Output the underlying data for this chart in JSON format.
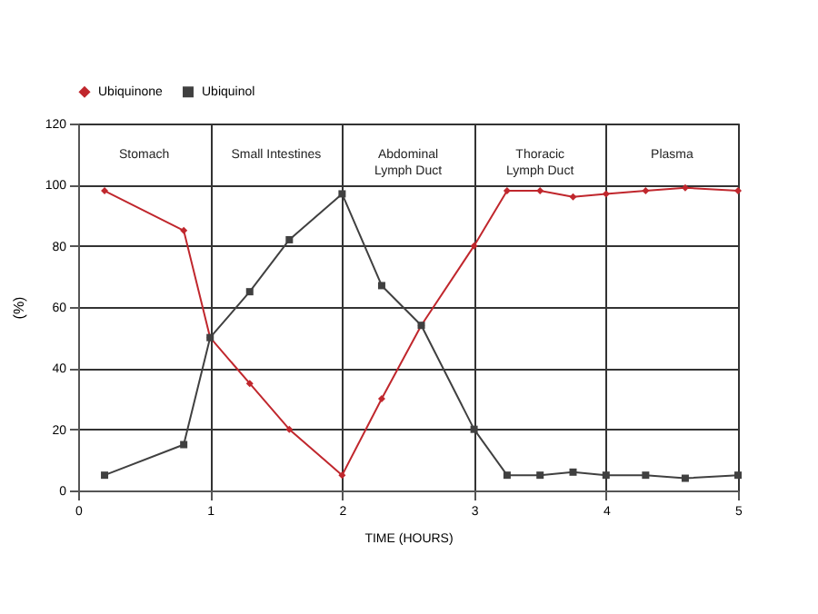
{
  "chart_data": {
    "type": "line",
    "xlabel": "TIME  (HOURS)",
    "ylabel": "(%)",
    "xlim": [
      0,
      5
    ],
    "xticks": [
      0,
      1,
      2,
      3,
      4,
      5
    ],
    "ylim": [
      0,
      120
    ],
    "yticks": [
      0,
      20,
      40,
      60,
      80,
      100,
      120
    ],
    "grid": true,
    "legend": "top",
    "annotations": [
      "Stomach",
      "Small Intestines",
      "Abdominal\nLymph Duct",
      "Thoracic\nLymph Duct",
      "Plasma"
    ],
    "x": [
      0.2,
      0.8,
      1.0,
      1.3,
      1.6,
      2.0,
      2.3,
      2.6,
      3.0,
      3.25,
      3.5,
      3.75,
      4.0,
      4.3,
      4.6,
      5.0
    ],
    "series": [
      {
        "name": "Ubiquinone",
        "color": "#c0272d",
        "marker": "diamond",
        "values": [
          98,
          85,
          50,
          35,
          20,
          5,
          30,
          54,
          80,
          98,
          98,
          96,
          97,
          98,
          99,
          98
        ]
      },
      {
        "name": "Ubiquinol",
        "color": "#404040",
        "marker": "square",
        "values": [
          5,
          15,
          50,
          65,
          82,
          97,
          67,
          54,
          20,
          5,
          5,
          6,
          5,
          5,
          4,
          5
        ]
      }
    ]
  }
}
